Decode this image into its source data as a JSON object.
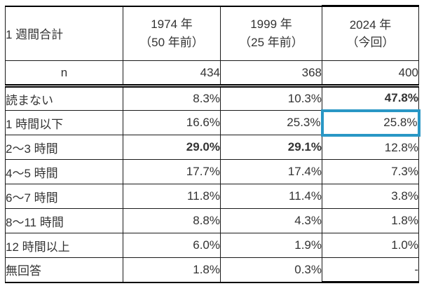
{
  "chart_data": {
    "type": "table",
    "title_cell": "1 週間合計",
    "n_label": "n",
    "columns": [
      {
        "year": "1974 年",
        "note": "（50 年前）",
        "n": "434"
      },
      {
        "year": "1999 年",
        "note": "（25 年前）",
        "n": "368"
      },
      {
        "year": "2024 年",
        "note": "（今回）",
        "n": "400"
      }
    ],
    "rows": [
      {
        "label": "読まない",
        "values": [
          "8.3%",
          "10.3%",
          "47.8%"
        ]
      },
      {
        "label": "1 時間以下",
        "values": [
          "16.6%",
          "25.3%",
          "25.8%"
        ]
      },
      {
        "label": "2～3 時間",
        "values": [
          "29.0%",
          "29.1%",
          "12.8%"
        ]
      },
      {
        "label": "4～5 時間",
        "values": [
          "17.7%",
          "17.4%",
          "7.3%"
        ]
      },
      {
        "label": "6～7 時間",
        "values": [
          "11.8%",
          "11.4%",
          "3.8%"
        ]
      },
      {
        "label": "8～11 時間",
        "values": [
          "8.8%",
          "4.3%",
          "1.8%"
        ]
      },
      {
        "label": "12 時間以上",
        "values": [
          "6.0%",
          "1.9%",
          "1.0%"
        ]
      },
      {
        "label": "無回答",
        "values": [
          "1.8%",
          "0.3%",
          "-"
        ]
      }
    ],
    "annotations": {
      "highlight_row": "読まない",
      "bold_cells": [
        "47.8%",
        "29.0%",
        "29.1%"
      ],
      "blue_outlined_cells": [
        "29.0%",
        "29.1%",
        "25.8%"
      ],
      "emphasized_column": "2024 年（今回）"
    },
    "colors": {
      "highlight_row_bg": "#CDE9F6",
      "emphasis_box_border": "#2997C5",
      "emphasized_column_border": "#000000"
    }
  }
}
